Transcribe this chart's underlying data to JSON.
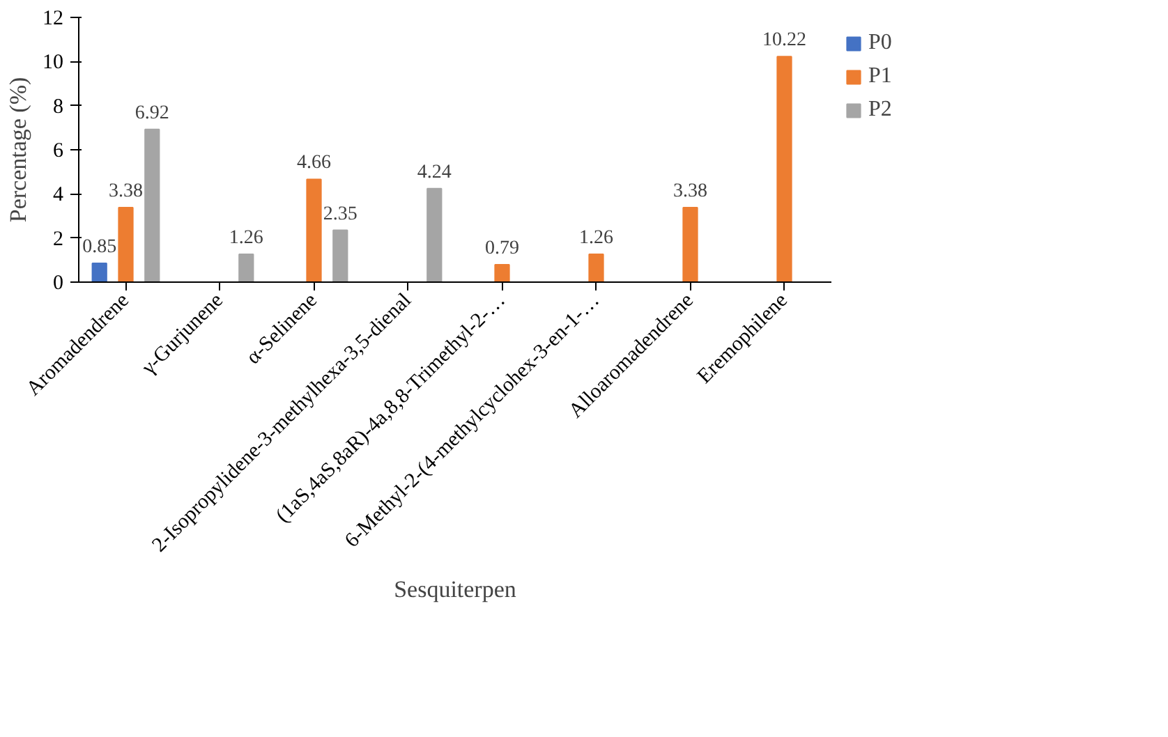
{
  "chart_data": {
    "type": "bar",
    "xlabel": "Sesquiterpen",
    "ylabel": "Percentage (%)",
    "categories": [
      "Aromadendrene",
      "γ-Gurjunene",
      "α-Selinene",
      "2-Isopropylidene-3-methylhexa-3,5-dienal",
      "(1aS,4aS,8aR)-4a,8,8-Trimethyl-2-…",
      "6-Methyl-2-(4-methylcyclohex-3-en-1-…",
      "Alloaromadendrene",
      "Eremophilene"
    ],
    "series": [
      {
        "name": "P0",
        "color": "#4472c4",
        "values": [
          0.85,
          null,
          null,
          null,
          null,
          null,
          null,
          null
        ]
      },
      {
        "name": "P1",
        "color": "#ed7d31",
        "values": [
          3.38,
          null,
          4.66,
          null,
          0.79,
          1.26,
          3.38,
          10.22
        ]
      },
      {
        "name": "P2",
        "color": "#a5a5a5",
        "values": [
          6.92,
          1.26,
          2.35,
          4.24,
          null,
          null,
          null,
          null
        ]
      }
    ],
    "ylim": [
      0,
      12
    ],
    "yticks": [
      0,
      2,
      4,
      6,
      8,
      10,
      12
    ],
    "grid": false,
    "legend": "right",
    "data_labels": true
  }
}
